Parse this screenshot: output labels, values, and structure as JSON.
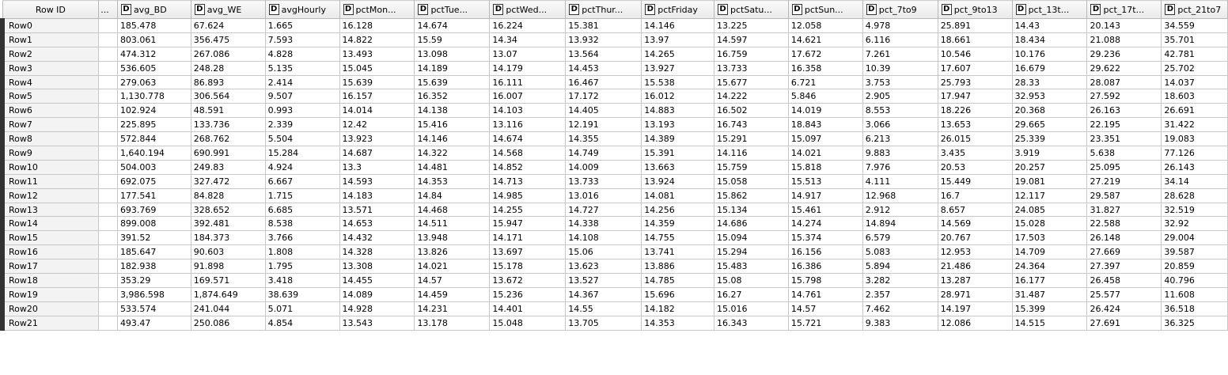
{
  "table": {
    "rowid_header": "Row ID",
    "gap_header": "...",
    "type_marker": "D",
    "columns": [
      "avg_BD",
      "avg_WE",
      "avgHourly",
      "pctMon...",
      "pctTue...",
      "pctWed...",
      "pctThur...",
      "pctFriday",
      "pctSatu...",
      "pctSun...",
      "pct_7to9",
      "pct_9to13",
      "pct_13t...",
      "pct_17t...",
      "pct_21to7"
    ],
    "rows": [
      {
        "id": "Row0",
        "values": [
          "185.478",
          "67.624",
          "1.665",
          "16.128",
          "14.674",
          "16.224",
          "15.381",
          "14.146",
          "13.225",
          "12.058",
          "4.978",
          "25.891",
          "14.43",
          "20.143",
          "34.559"
        ]
      },
      {
        "id": "Row1",
        "values": [
          "803.061",
          "356.475",
          "7.593",
          "14.822",
          "15.59",
          "14.34",
          "13.932",
          "13.97",
          "14.597",
          "14.621",
          "6.116",
          "18.661",
          "18.434",
          "21.088",
          "35.701"
        ]
      },
      {
        "id": "Row2",
        "values": [
          "474.312",
          "267.086",
          "4.828",
          "13.493",
          "13.098",
          "13.07",
          "13.564",
          "14.265",
          "16.759",
          "17.672",
          "7.261",
          "10.546",
          "10.176",
          "29.236",
          "42.781"
        ]
      },
      {
        "id": "Row3",
        "values": [
          "536.605",
          "248.28",
          "5.135",
          "15.045",
          "14.189",
          "14.179",
          "14.453",
          "13.927",
          "13.733",
          "16.358",
          "10.39",
          "17.607",
          "16.679",
          "29.622",
          "25.702"
        ]
      },
      {
        "id": "Row4",
        "values": [
          "279.063",
          "86.893",
          "2.414",
          "15.639",
          "15.639",
          "16.111",
          "16.467",
          "15.538",
          "15.677",
          "6.721",
          "3.753",
          "25.793",
          "28.33",
          "28.087",
          "14.037"
        ]
      },
      {
        "id": "Row5",
        "values": [
          "1,130.778",
          "306.564",
          "9.507",
          "16.157",
          "16.352",
          "16.007",
          "17.172",
          "16.012",
          "14.222",
          "5.846",
          "2.905",
          "17.947",
          "32.953",
          "27.592",
          "18.603"
        ]
      },
      {
        "id": "Row6",
        "values": [
          "102.924",
          "48.591",
          "0.993",
          "14.014",
          "14.138",
          "14.103",
          "14.405",
          "14.883",
          "16.502",
          "14.019",
          "8.553",
          "18.226",
          "20.368",
          "26.163",
          "26.691"
        ]
      },
      {
        "id": "Row7",
        "values": [
          "225.895",
          "133.736",
          "2.339",
          "12.42",
          "15.416",
          "13.116",
          "12.191",
          "13.193",
          "16.743",
          "18.843",
          "3.066",
          "13.653",
          "29.665",
          "22.195",
          "31.422"
        ]
      },
      {
        "id": "Row8",
        "values": [
          "572.844",
          "268.762",
          "5.504",
          "13.923",
          "14.146",
          "14.674",
          "14.355",
          "14.389",
          "15.291",
          "15.097",
          "6.213",
          "26.015",
          "25.339",
          "23.351",
          "19.083"
        ]
      },
      {
        "id": "Row9",
        "values": [
          "1,640.194",
          "690.991",
          "15.284",
          "14.687",
          "14.322",
          "14.568",
          "14.749",
          "15.391",
          "14.116",
          "14.021",
          "9.883",
          "3.435",
          "3.919",
          "5.638",
          "77.126"
        ]
      },
      {
        "id": "Row10",
        "values": [
          "504.003",
          "249.83",
          "4.924",
          "13.3",
          "14.481",
          "14.852",
          "14.009",
          "13.663",
          "15.759",
          "15.818",
          "7.976",
          "20.53",
          "20.257",
          "25.095",
          "26.143"
        ]
      },
      {
        "id": "Row11",
        "values": [
          "692.075",
          "327.472",
          "6.667",
          "14.593",
          "14.353",
          "14.713",
          "13.733",
          "13.924",
          "15.058",
          "15.513",
          "4.111",
          "15.449",
          "19.081",
          "27.219",
          "34.14"
        ]
      },
      {
        "id": "Row12",
        "values": [
          "177.541",
          "84.828",
          "1.715",
          "14.183",
          "14.84",
          "14.985",
          "13.016",
          "14.081",
          "15.862",
          "14.917",
          "12.968",
          "16.7",
          "12.117",
          "29.587",
          "28.628"
        ]
      },
      {
        "id": "Row13",
        "values": [
          "693.769",
          "328.652",
          "6.685",
          "13.571",
          "14.468",
          "14.255",
          "14.727",
          "14.256",
          "15.134",
          "15.461",
          "2.912",
          "8.657",
          "24.085",
          "31.827",
          "32.519"
        ]
      },
      {
        "id": "Row14",
        "values": [
          "899.008",
          "392.481",
          "8.538",
          "14.653",
          "14.511",
          "15.947",
          "14.338",
          "14.359",
          "14.686",
          "14.274",
          "14.894",
          "14.569",
          "15.028",
          "22.588",
          "32.92"
        ]
      },
      {
        "id": "Row15",
        "values": [
          "391.52",
          "184.373",
          "3.766",
          "14.432",
          "13.948",
          "14.171",
          "14.108",
          "14.755",
          "15.094",
          "15.374",
          "6.579",
          "20.767",
          "17.503",
          "26.148",
          "29.004"
        ]
      },
      {
        "id": "Row16",
        "values": [
          "185.647",
          "90.603",
          "1.808",
          "14.328",
          "13.826",
          "13.697",
          "15.06",
          "13.741",
          "15.294",
          "16.156",
          "5.083",
          "12.953",
          "14.709",
          "27.669",
          "39.587"
        ]
      },
      {
        "id": "Row17",
        "values": [
          "182.938",
          "91.898",
          "1.795",
          "13.308",
          "14.021",
          "15.178",
          "13.623",
          "13.886",
          "15.483",
          "16.386",
          "5.894",
          "21.486",
          "24.364",
          "27.397",
          "20.859"
        ]
      },
      {
        "id": "Row18",
        "values": [
          "353.29",
          "169.571",
          "3.418",
          "14.455",
          "14.57",
          "13.672",
          "13.527",
          "14.785",
          "15.08",
          "15.798",
          "3.282",
          "13.287",
          "16.177",
          "26.458",
          "40.796"
        ]
      },
      {
        "id": "Row19",
        "values": [
          "3,986.598",
          "1,874.649",
          "38.639",
          "14.089",
          "14.459",
          "15.236",
          "14.367",
          "15.696",
          "16.27",
          "14.761",
          "2.357",
          "28.971",
          "31.487",
          "25.577",
          "11.608"
        ]
      },
      {
        "id": "Row20",
        "values": [
          "533.574",
          "241.044",
          "5.071",
          "14.928",
          "14.231",
          "14.401",
          "14.55",
          "14.182",
          "15.016",
          "14.57",
          "7.462",
          "14.197",
          "15.399",
          "26.424",
          "36.518"
        ]
      },
      {
        "id": "Row21",
        "values": [
          "493.47",
          "250.086",
          "4.854",
          "13.543",
          "13.178",
          "15.048",
          "13.705",
          "14.353",
          "16.343",
          "15.721",
          "9.383",
          "12.086",
          "14.515",
          "27.691",
          "36.325"
        ]
      }
    ]
  }
}
